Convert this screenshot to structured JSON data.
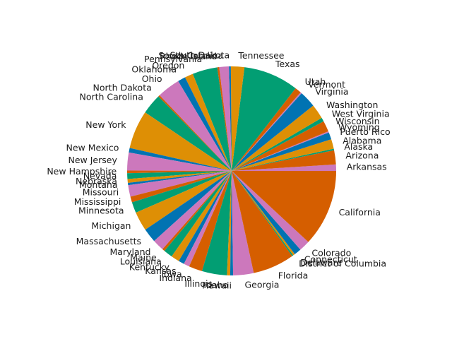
{
  "chart_data": {
    "type": "pie",
    "start_angle_deg": 0,
    "direction": "counterclockwise",
    "colors": [
      "#CC78BC",
      "#D55E00",
      "#029E73",
      "#DE8F05",
      "#0173B2"
    ],
    "slices": [
      {
        "label": "Arkansas",
        "value": 1.0
      },
      {
        "label": "Arizona",
        "value": 2.2
      },
      {
        "label": "Alaska",
        "value": 0.25
      },
      {
        "label": "Alabama",
        "value": 1.5
      },
      {
        "label": "Puerto Rico",
        "value": 1.1
      },
      {
        "label": "Wyoming",
        "value": 0.2
      },
      {
        "label": "Wisconsin",
        "value": 1.7
      },
      {
        "label": "West Virginia",
        "value": 0.6
      },
      {
        "label": "Washington",
        "value": 2.3
      },
      {
        "label": "Virginia",
        "value": 2.6
      },
      {
        "label": "Vermont",
        "value": 0.2
      },
      {
        "label": "Utah",
        "value": 1.0
      },
      {
        "label": "Texas",
        "value": 8.6
      },
      {
        "label": "Tennessee",
        "value": 2.1
      },
      {
        "label": "South Dakota",
        "value": 0.3
      },
      {
        "label": "South Carolina",
        "value": 1.5
      },
      {
        "label": "Rhode Island",
        "value": 0.3
      },
      {
        "label": "Pennsylvania",
        "value": 3.9
      },
      {
        "label": "Oregon",
        "value": 1.3
      },
      {
        "label": "Oklahoma",
        "value": 1.2
      },
      {
        "label": "Ohio",
        "value": 3.6
      },
      {
        "label": "North Dakota",
        "value": 0.25
      },
      {
        "label": "North Carolina",
        "value": 3.2
      },
      {
        "label": "New York",
        "value": 6.0
      },
      {
        "label": "New Mexico",
        "value": 0.7
      },
      {
        "label": "New Jersey",
        "value": 2.8
      },
      {
        "label": "New Hampshire",
        "value": 0.4
      },
      {
        "label": "Nevada",
        "value": 0.9
      },
      {
        "label": "Nebraska",
        "value": 0.6
      },
      {
        "label": "Montana",
        "value": 0.35
      },
      {
        "label": "Missouri",
        "value": 1.8
      },
      {
        "label": "Mississippi",
        "value": 0.9
      },
      {
        "label": "Minnesota",
        "value": 1.7
      },
      {
        "label": "Michigan",
        "value": 3.0
      },
      {
        "label": "Massachusetts",
        "value": 2.2
      },
      {
        "label": "Maryland",
        "value": 1.8
      },
      {
        "label": "Maine",
        "value": 0.4
      },
      {
        "label": "Louisiana",
        "value": 1.4
      },
      {
        "label": "Kentucky",
        "value": 1.3
      },
      {
        "label": "Kansas",
        "value": 0.9
      },
      {
        "label": "Iowa",
        "value": 0.9
      },
      {
        "label": "Indiana",
        "value": 2.1
      },
      {
        "label": "Illinois",
        "value": 3.9
      },
      {
        "label": "Idaho",
        "value": 0.5
      },
      {
        "label": "Hawaii",
        "value": 0.45
      },
      {
        "label": "Georgia",
        "value": 3.2
      },
      {
        "label": "Florida",
        "value": 6.5
      },
      {
        "label": "District of Columbia",
        "value": 0.2
      },
      {
        "label": "Delaware",
        "value": 0.3
      },
      {
        "label": "Connecticut",
        "value": 1.1
      },
      {
        "label": "Colorado",
        "value": 1.7
      },
      {
        "label": "California",
        "value": 12.0
      }
    ]
  }
}
